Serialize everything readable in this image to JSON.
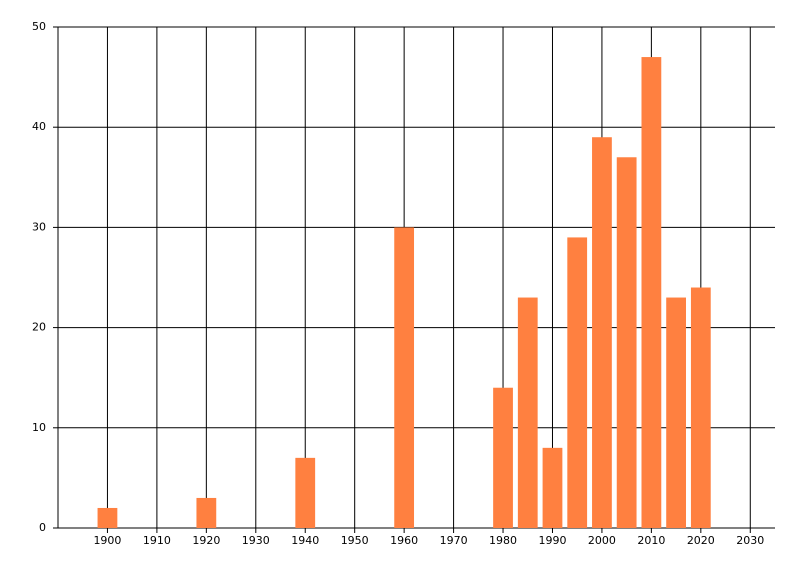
{
  "chart_data": {
    "type": "bar",
    "x": [
      1900,
      1920,
      1940,
      1960,
      1980,
      1985,
      1990,
      1995,
      2000,
      2005,
      2010,
      2015,
      2020
    ],
    "values": [
      2,
      3,
      7,
      30,
      14,
      23,
      8,
      29,
      39,
      37,
      47,
      23,
      24
    ],
    "color": "#ff8040",
    "xlim": [
      1890,
      2035
    ],
    "xticks": [
      1900,
      1910,
      1920,
      1930,
      1940,
      1950,
      1960,
      1970,
      1980,
      1990,
      2000,
      2010,
      2020,
      2030
    ],
    "ylim": [
      0,
      50
    ],
    "yticks": [
      0,
      10,
      20,
      30,
      40,
      50
    ],
    "grid": true
  }
}
